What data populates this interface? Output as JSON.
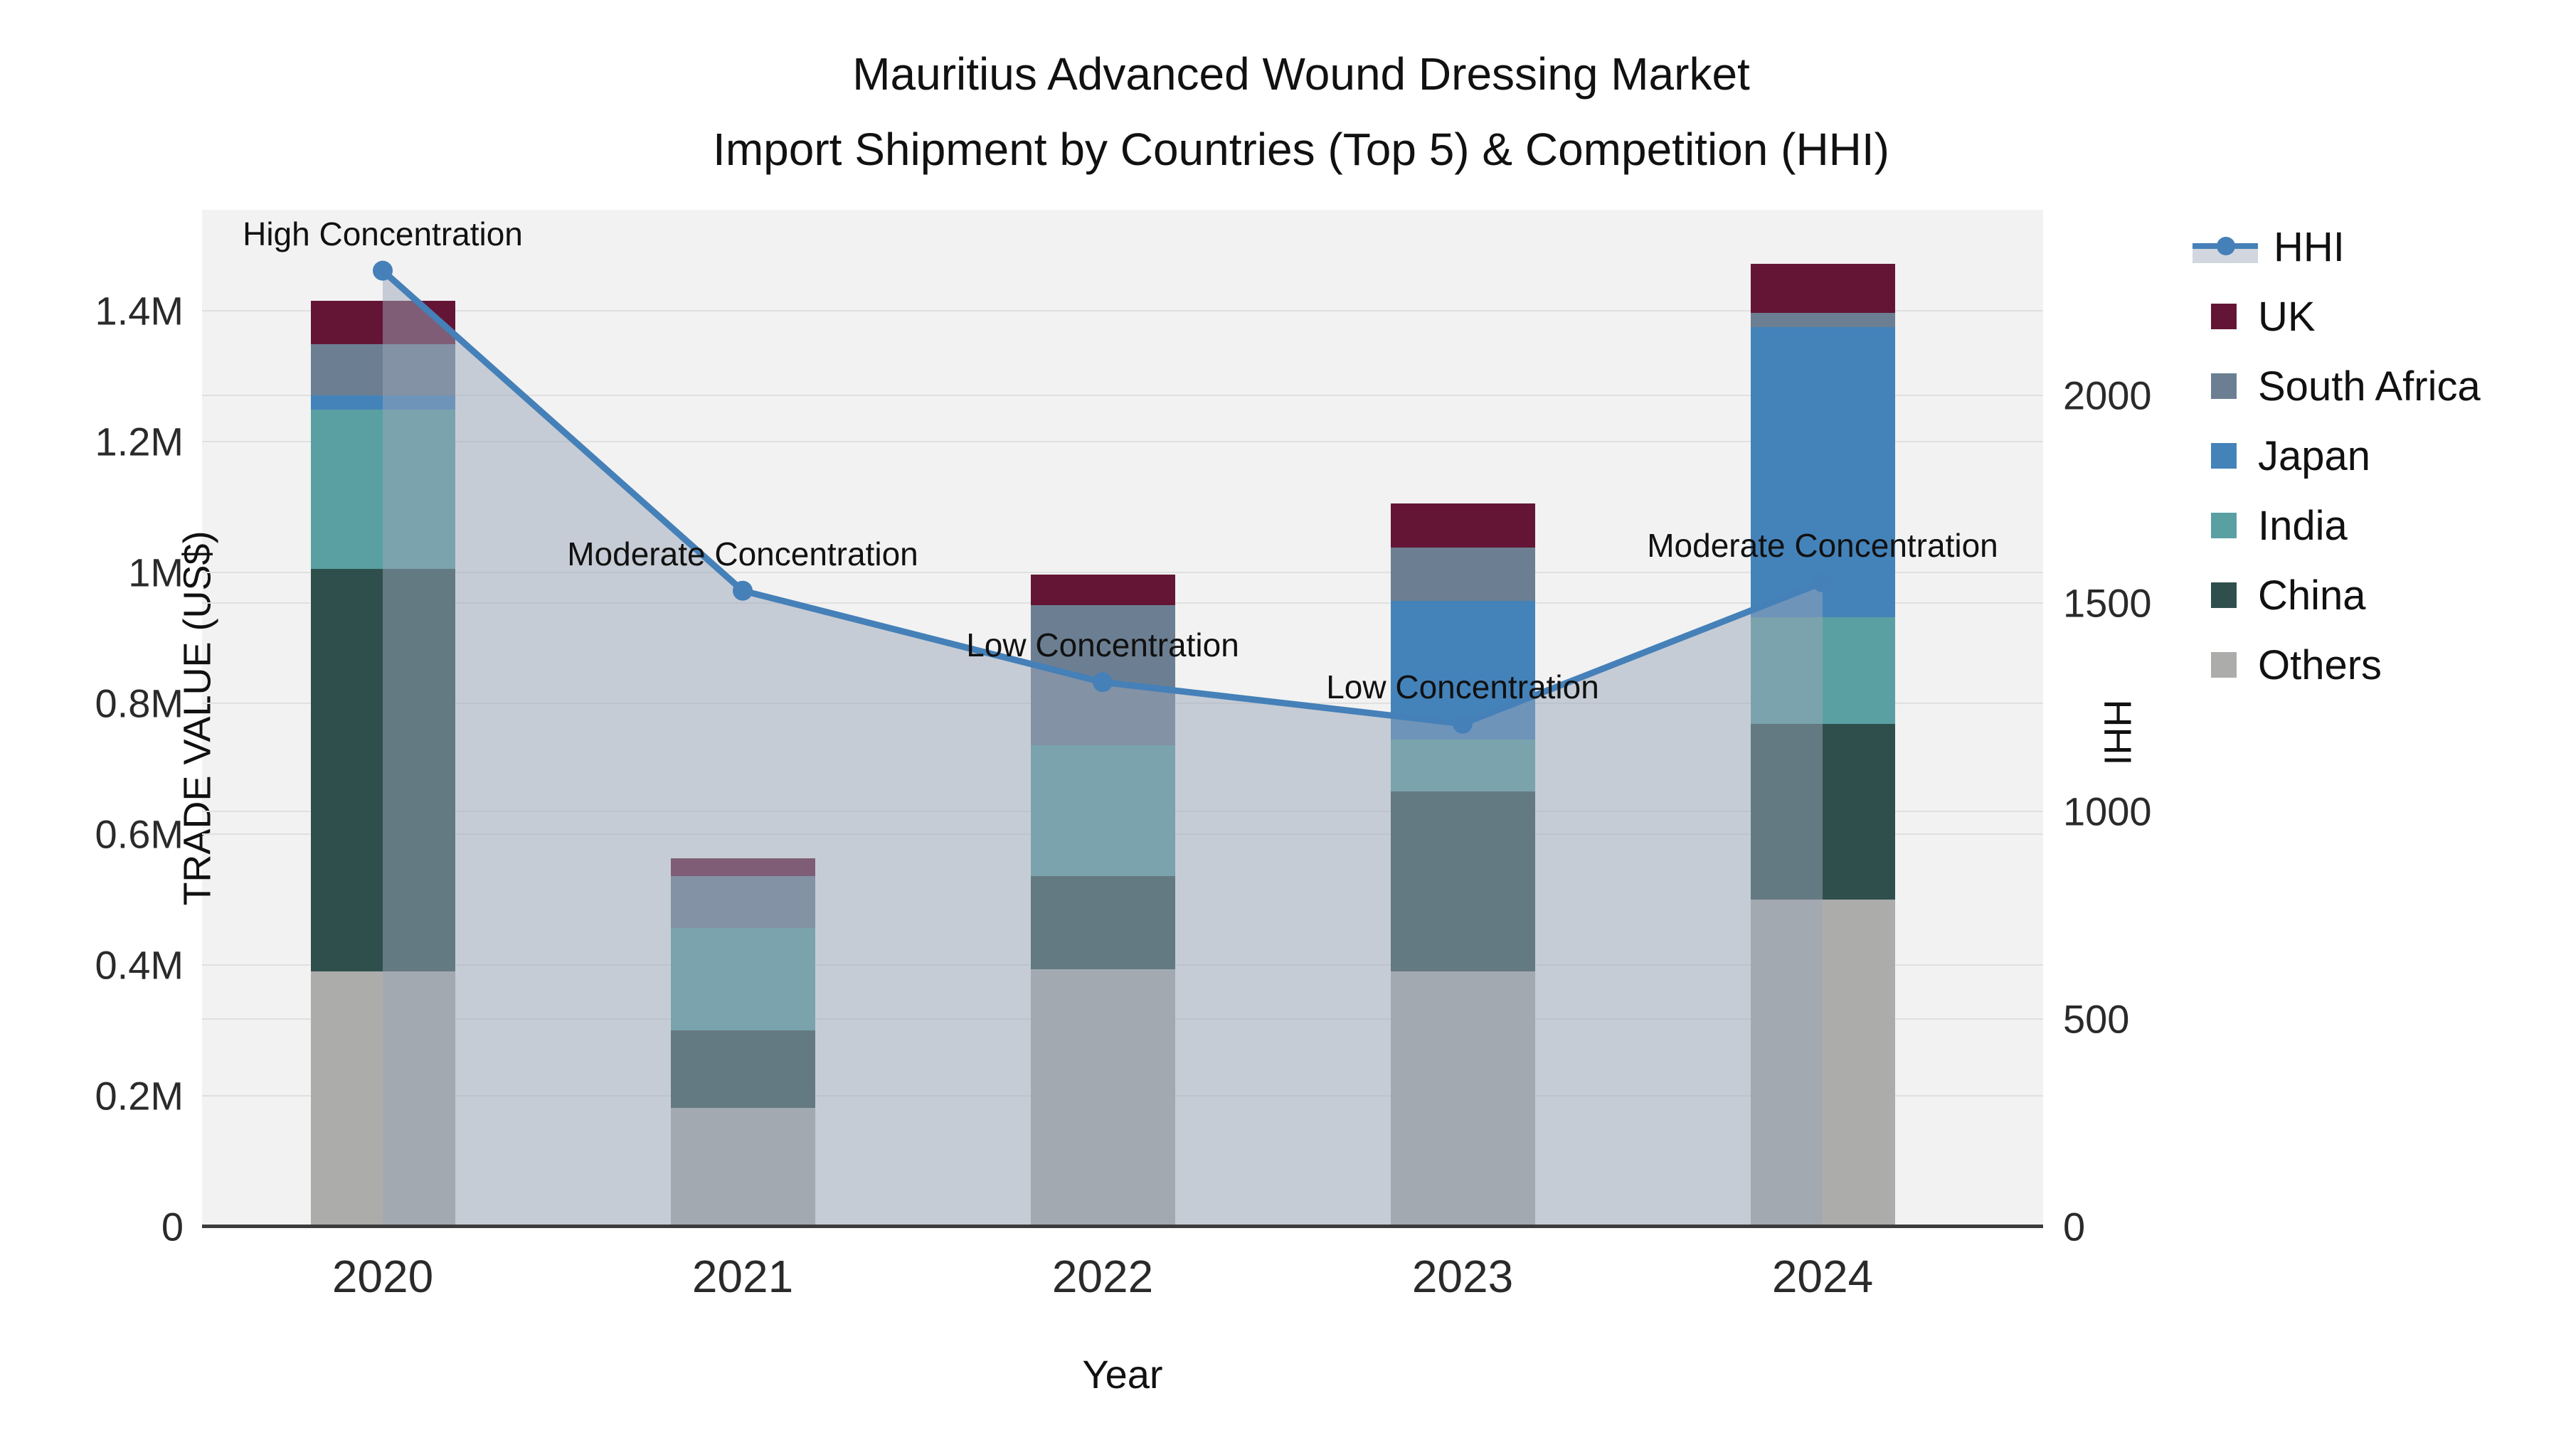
{
  "title": {
    "line1": "Mauritius Advanced Wound Dressing Market",
    "line2": "Import Shipment by Countries (Top 5) & Competition (HHI)"
  },
  "axes": {
    "x": {
      "title": "Year",
      "categories": [
        "2020",
        "2021",
        "2022",
        "2023",
        "2024"
      ]
    },
    "y_left": {
      "title": "TRADE VALUE (US$)",
      "ticks": [
        {
          "label": "0",
          "value": 0
        },
        {
          "label": "0.2M",
          "value": 200000
        },
        {
          "label": "0.4M",
          "value": 400000
        },
        {
          "label": "0.6M",
          "value": 600000
        },
        {
          "label": "0.8M",
          "value": 800000
        },
        {
          "label": "1M",
          "value": 1000000
        },
        {
          "label": "1.2M",
          "value": 1200000
        },
        {
          "label": "1.4M",
          "value": 1400000
        }
      ]
    },
    "y_right": {
      "title": "HHI",
      "ticks": [
        {
          "label": "0",
          "value": 0
        },
        {
          "label": "500",
          "value": 500
        },
        {
          "label": "1000",
          "value": 1000
        },
        {
          "label": "1500",
          "value": 1500
        },
        {
          "label": "2000",
          "value": 2000
        }
      ]
    }
  },
  "colors": {
    "plot_background": "#F2F2F2",
    "gridline": "#E0E0E0",
    "axis_line": "#3C3C3C",
    "hhi_line": "#4580B8",
    "hhi_area": "rgba(154,165,184,0.5)",
    "UK": "#641535",
    "South Africa": "#6C7F92",
    "Japan": "#4483BA",
    "India": "#5AA0A2",
    "China": "#2F4F4D",
    "Others": "#ACACAA"
  },
  "legend": [
    {
      "label": "HHI",
      "type": "line"
    },
    {
      "label": "UK",
      "type": "swatch"
    },
    {
      "label": "South Africa",
      "type": "swatch"
    },
    {
      "label": "Japan",
      "type": "swatch"
    },
    {
      "label": "India",
      "type": "swatch"
    },
    {
      "label": "China",
      "type": "swatch"
    },
    {
      "label": "Others",
      "type": "swatch"
    }
  ],
  "chart_data": {
    "type": "bar+line",
    "title": "Mauritius Advanced Wound Dressing Market — Import Shipment by Countries (Top 5) & Competition (HHI)",
    "categories": [
      "2020",
      "2021",
      "2022",
      "2023",
      "2024"
    ],
    "stack_order_bottom_to_top": [
      "Others",
      "China",
      "India",
      "Japan",
      "South Africa",
      "UK"
    ],
    "series": [
      {
        "name": "Others",
        "values": [
          390000,
          182000,
          393000,
          390000,
          500000
        ]
      },
      {
        "name": "China",
        "values": [
          615000,
          118000,
          143000,
          275000,
          268000
        ]
      },
      {
        "name": "India",
        "values": [
          244000,
          157000,
          200000,
          80000,
          164000
        ]
      },
      {
        "name": "Japan",
        "values": [
          22000,
          0,
          0,
          211000,
          443000
        ]
      },
      {
        "name": "South Africa",
        "values": [
          78000,
          79000,
          214000,
          82000,
          22000
        ]
      },
      {
        "name": "UK",
        "values": [
          66000,
          27000,
          47000,
          67000,
          75000
        ]
      }
    ],
    "bar_totals": [
      1415000,
      563000,
      997000,
      1105000,
      1472000
    ],
    "hhi_series": {
      "name": "HHI",
      "values": [
        2300,
        1530,
        1310,
        1210,
        1550
      ],
      "style": "line+markers+area"
    },
    "annotations": [
      {
        "year": "2020",
        "label": "High Concentration"
      },
      {
        "year": "2021",
        "label": "Moderate Concentration"
      },
      {
        "year": "2022",
        "label": "Low Concentration"
      },
      {
        "year": "2023",
        "label": "Low Concentration"
      },
      {
        "year": "2024",
        "label": "Moderate Concentration"
      }
    ],
    "xlabel": "Year",
    "ylabel_left": "TRADE VALUE (US$)",
    "ylabel_right": "HHI",
    "ylim_left": [
      0,
      1554000
    ],
    "ylim_right": [
      0,
      2446
    ],
    "grid": true,
    "legend_position": "right"
  }
}
